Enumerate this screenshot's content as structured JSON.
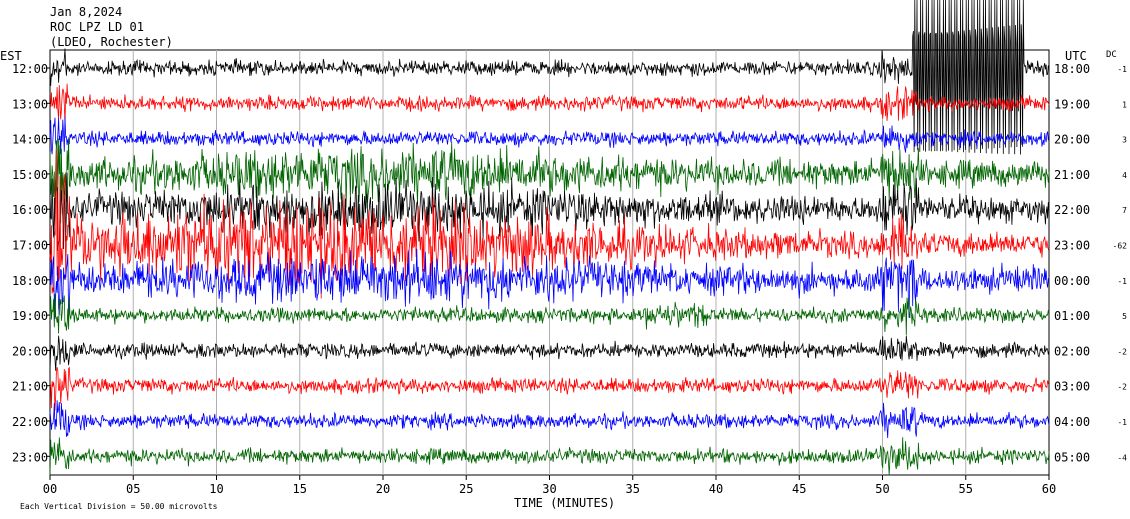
{
  "header": {
    "date": "Jan 8,2024",
    "station": "ROC LPZ LD 01",
    "network": "(LDEO, Rochester)"
  },
  "colors": {
    "traces": [
      "#000000",
      "#ff0000",
      "#0000ff",
      "#006400"
    ]
  },
  "chart_data": {
    "type": "line",
    "title": "",
    "left_axis_label": "EST",
    "right_axis_label": "UTC",
    "dc_label": "DC",
    "xlabel": "TIME (MINUTES)",
    "x_ticks": [
      "00",
      "05",
      "10",
      "15",
      "20",
      "25",
      "30",
      "35",
      "40",
      "45",
      "50",
      "55",
      "60"
    ],
    "xlim": [
      0,
      60
    ],
    "est_labels": [
      "12:00",
      "13:00",
      "14:00",
      "15:00",
      "16:00",
      "17:00",
      "18:00",
      "19:00",
      "20:00",
      "21:00",
      "22:00",
      "23:00"
    ],
    "utc_labels": [
      "18:00",
      "19:00",
      "20:00",
      "21:00",
      "22:00",
      "23:00",
      "00:00",
      "01:00",
      "02:00",
      "03:00",
      "04:00",
      "05:00"
    ],
    "dc_offsets": [
      "-1",
      "1",
      "3",
      "4",
      "7",
      "-62",
      "-1",
      "5",
      "-2",
      "-2",
      "-1",
      "-4"
    ],
    "grid": true,
    "footer_note": "Each Vertical Division =   50.00 microvolts"
  }
}
